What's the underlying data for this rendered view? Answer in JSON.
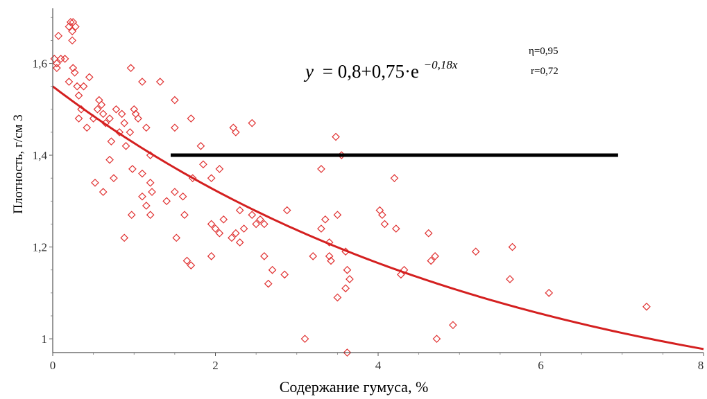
{
  "chart_data": {
    "type": "scatter",
    "xlabel": "Содержание гумуса, %",
    "ylabel": "Плотность, г/см 3",
    "xlim": [
      0,
      8
    ],
    "ylim": [
      0.97,
      1.72
    ],
    "x_ticks": [
      "0",
      "2",
      "4",
      "6",
      "8"
    ],
    "y_ticks": [
      "1",
      "1,2",
      "1,4",
      "1,6"
    ],
    "x_tick_values": [
      0,
      2,
      4,
      6,
      8
    ],
    "y_tick_values": [
      1.0,
      1.2,
      1.4,
      1.6
    ],
    "grid": false,
    "legend": "none",
    "point_color": "#e03030",
    "curve_color": "#d42020",
    "line_color": "#000000",
    "equation": {
      "y": "y",
      "base": "= 0,8+0,75·e",
      "exponent": "−0,18x"
    },
    "stats": {
      "eta": "η=0,95",
      "r": "r=0,72"
    },
    "fit_curve": {
      "a": 0.8,
      "b": 0.75,
      "k": -0.18,
      "x_range": [
        0,
        8
      ]
    },
    "reference_line": {
      "y": 1.4,
      "x_start": 1.45,
      "x_end": 6.95
    },
    "points": [
      [
        0.02,
        1.61
      ],
      [
        0.05,
        1.6
      ],
      [
        0.07,
        1.66
      ],
      [
        0.1,
        1.61
      ],
      [
        0.05,
        1.59
      ],
      [
        0.15,
        1.61
      ],
      [
        0.2,
        1.68
      ],
      [
        0.22,
        1.69
      ],
      [
        0.24,
        1.67
      ],
      [
        0.25,
        1.69
      ],
      [
        0.28,
        1.68
      ],
      [
        0.24,
        1.65
      ],
      [
        0.2,
        1.56
      ],
      [
        0.25,
        1.59
      ],
      [
        0.27,
        1.58
      ],
      [
        0.3,
        1.55
      ],
      [
        0.32,
        1.53
      ],
      [
        0.35,
        1.5
      ],
      [
        0.32,
        1.48
      ],
      [
        0.38,
        1.55
      ],
      [
        0.45,
        1.57
      ],
      [
        0.42,
        1.46
      ],
      [
        0.5,
        1.48
      ],
      [
        0.55,
        1.5
      ],
      [
        0.57,
        1.52
      ],
      [
        0.6,
        1.51
      ],
      [
        0.62,
        1.49
      ],
      [
        0.65,
        1.47
      ],
      [
        0.7,
        1.48
      ],
      [
        0.72,
        1.43
      ],
      [
        0.78,
        1.5
      ],
      [
        0.82,
        1.45
      ],
      [
        0.85,
        1.49
      ],
      [
        0.88,
        1.47
      ],
      [
        0.9,
        1.42
      ],
      [
        0.95,
        1.45
      ],
      [
        0.96,
        1.59
      ],
      [
        1.0,
        1.5
      ],
      [
        1.02,
        1.49
      ],
      [
        1.05,
        1.48
      ],
      [
        1.1,
        1.56
      ],
      [
        1.15,
        1.46
      ],
      [
        1.2,
        1.4
      ],
      [
        1.32,
        1.56
      ],
      [
        1.5,
        1.52
      ],
      [
        1.5,
        1.46
      ],
      [
        1.7,
        1.48
      ],
      [
        1.82,
        1.42
      ],
      [
        2.25,
        1.45
      ],
      [
        2.22,
        1.46
      ],
      [
        2.45,
        1.47
      ],
      [
        0.7,
        1.39
      ],
      [
        0.75,
        1.35
      ],
      [
        0.98,
        1.37
      ],
      [
        1.1,
        1.36
      ],
      [
        1.2,
        1.34
      ],
      [
        1.22,
        1.32
      ],
      [
        0.52,
        1.34
      ],
      [
        0.62,
        1.32
      ],
      [
        1.15,
        1.29
      ],
      [
        1.1,
        1.31
      ],
      [
        1.2,
        1.27
      ],
      [
        0.97,
        1.27
      ],
      [
        0.88,
        1.22
      ],
      [
        1.4,
        1.3
      ],
      [
        1.5,
        1.32
      ],
      [
        1.52,
        1.22
      ],
      [
        1.6,
        1.31
      ],
      [
        1.62,
        1.27
      ],
      [
        1.72,
        1.35
      ],
      [
        1.65,
        1.17
      ],
      [
        1.7,
        1.16
      ],
      [
        1.85,
        1.38
      ],
      [
        1.95,
        1.35
      ],
      [
        2.05,
        1.37
      ],
      [
        1.95,
        1.25
      ],
      [
        2.0,
        1.24
      ],
      [
        2.05,
        1.23
      ],
      [
        1.95,
        1.18
      ],
      [
        2.1,
        1.26
      ],
      [
        2.2,
        1.22
      ],
      [
        2.25,
        1.23
      ],
      [
        2.3,
        1.21
      ],
      [
        2.3,
        1.28
      ],
      [
        2.35,
        1.24
      ],
      [
        2.45,
        1.27
      ],
      [
        2.5,
        1.25
      ],
      [
        2.55,
        1.26
      ],
      [
        2.6,
        1.25
      ],
      [
        2.6,
        1.18
      ],
      [
        2.65,
        1.12
      ],
      [
        2.7,
        1.15
      ],
      [
        2.85,
        1.14
      ],
      [
        2.88,
        1.28
      ],
      [
        3.1,
        1.0
      ],
      [
        3.2,
        1.18
      ],
      [
        3.3,
        1.24
      ],
      [
        3.3,
        1.37
      ],
      [
        3.35,
        1.26
      ],
      [
        3.4,
        1.21
      ],
      [
        3.4,
        1.18
      ],
      [
        3.42,
        1.17
      ],
      [
        3.48,
        1.44
      ],
      [
        3.5,
        1.27
      ],
      [
        3.5,
        1.09
      ],
      [
        3.55,
        1.4
      ],
      [
        3.6,
        1.19
      ],
      [
        3.6,
        1.11
      ],
      [
        3.62,
        1.15
      ],
      [
        3.65,
        1.13
      ],
      [
        3.62,
        0.97
      ],
      [
        4.02,
        1.28
      ],
      [
        4.05,
        1.27
      ],
      [
        4.08,
        1.25
      ],
      [
        4.2,
        1.35
      ],
      [
        4.22,
        1.24
      ],
      [
        4.28,
        1.14
      ],
      [
        4.32,
        1.15
      ],
      [
        4.62,
        1.23
      ],
      [
        4.65,
        1.17
      ],
      [
        4.7,
        1.18
      ],
      [
        4.72,
        1.0
      ],
      [
        4.92,
        1.03
      ],
      [
        5.2,
        1.19
      ],
      [
        5.62,
        1.13
      ],
      [
        5.65,
        1.2
      ],
      [
        6.1,
        1.1
      ],
      [
        7.3,
        1.07
      ]
    ]
  }
}
